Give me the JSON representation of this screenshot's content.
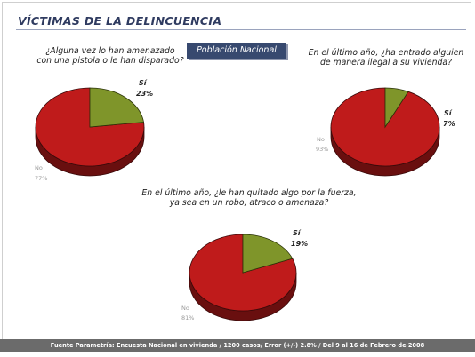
{
  "header": {
    "title": "VÍCTIMAS DE LA DELINCUENCIA",
    "badge": "Población Nacional"
  },
  "footer": {
    "source": "Fuente Parametría: Encuesta Nacional en vivienda / 1200 casos/ Error (+/-) 2.8% / Del 9 al 16 de Febrero de 2008"
  },
  "colors": {
    "si": "#7f952a",
    "no": "#bf1b1b",
    "header_text": "#2f3b60",
    "badge_bg": "#37496f",
    "footer_bg": "#6b6b6b"
  },
  "chart_data": [
    {
      "type": "pie",
      "question": "¿Alguna vez lo han amenazado\ncon una pistola o le han disparado?",
      "slices": [
        {
          "name": "Sí",
          "value": 23,
          "label": "23%"
        },
        {
          "name": "No",
          "value": 77,
          "label": "77%"
        }
      ]
    },
    {
      "type": "pie",
      "question": "En el último año, ¿ha entrado alguien\nde manera ilegal a su vivienda?",
      "slices": [
        {
          "name": "Sí",
          "value": 7,
          "label": "7%"
        },
        {
          "name": "No",
          "value": 93,
          "label": "93%"
        }
      ]
    },
    {
      "type": "pie",
      "question": "En el último año, ¿le han quitado algo por la fuerza,\nya sea en un robo, atraco o amenaza?",
      "slices": [
        {
          "name": "Sí",
          "value": 19,
          "label": "19%"
        },
        {
          "name": "No",
          "value": 81,
          "label": "81%"
        }
      ]
    }
  ]
}
